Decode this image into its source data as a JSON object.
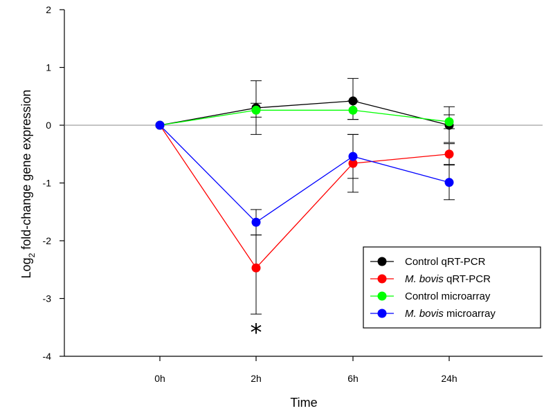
{
  "chart_data": {
    "type": "line",
    "title": "",
    "xlabel": "Time",
    "ylabel_main": "Log",
    "ylabel_sub": "2",
    "ylabel_rest": " fold-change gene expression",
    "categories": [
      "0h",
      "2h",
      "6h",
      "24h"
    ],
    "ylim": [
      -4,
      2
    ],
    "yticks": [
      "2",
      "1",
      "0",
      "-1",
      "-2",
      "-3",
      "-4"
    ],
    "ytick_values": [
      2,
      1,
      0,
      -1,
      -2,
      -3,
      -4
    ],
    "reference_line": 0,
    "grid": false,
    "legend_position": "bottom-right",
    "annotation": "*",
    "annotation_category": "2h",
    "series": [
      {
        "name": "Control qRT-PCR",
        "name_italic": "",
        "name_rest": "Control qRT-PCR",
        "color": "#000000",
        "values": [
          0,
          0.3,
          0.42,
          0.0
        ],
        "err_low": [
          0,
          0.46,
          0.32,
          0.3
        ],
        "err_high": [
          0,
          0.47,
          0.39,
          0.32
        ]
      },
      {
        "name": "M. bovis qRT-PCR",
        "name_italic": "M. bovis",
        "name_rest": " qRT-PCR",
        "color": "#ff0000",
        "values": [
          0,
          -2.47,
          -0.66,
          -0.5
        ],
        "err_low": [
          0,
          0.8,
          0.5,
          0.18
        ],
        "err_high": [
          0,
          0.57,
          0.5,
          0.18
        ]
      },
      {
        "name": "Control microarray",
        "name_italic": "",
        "name_rest": "Control microarray",
        "color": "#00ff00",
        "values": [
          0,
          0.26,
          0.26,
          0.06
        ],
        "err_low": [
          0,
          0.12,
          0.16,
          0.12
        ],
        "err_high": [
          0,
          0.12,
          0.16,
          0.12
        ]
      },
      {
        "name": "M. bovis microarray",
        "name_italic": "M. bovis",
        "name_rest": " microarray",
        "color": "#0000ff",
        "values": [
          0,
          -1.68,
          -0.54,
          -0.99
        ],
        "err_low": [
          0,
          0.22,
          0.38,
          0.3
        ],
        "err_high": [
          0,
          0.22,
          0.38,
          0.3
        ]
      }
    ]
  }
}
